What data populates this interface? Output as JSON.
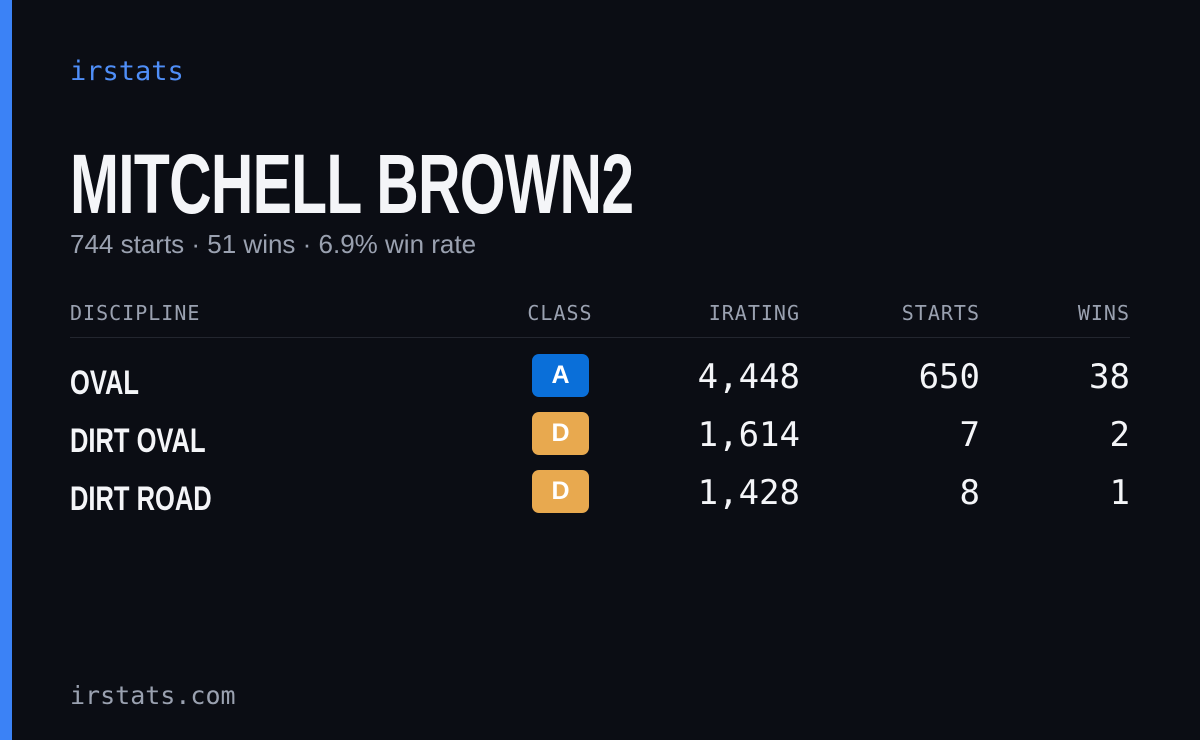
{
  "brand": "irstats",
  "driver": {
    "name": "MITCHELL BROWN2",
    "summary": "744 starts · 51 wins · 6.9% win rate"
  },
  "table": {
    "headers": [
      "DISCIPLINE",
      "CLASS",
      "IRATING",
      "STARTS",
      "WINS"
    ],
    "rows": [
      [
        "OVAL",
        "A",
        "4,448",
        "650",
        "38"
      ],
      [
        "DIRT OVAL",
        "D",
        "1,614",
        "7",
        "2"
      ],
      [
        "DIRT ROAD",
        "D",
        "1,428",
        "8",
        "1"
      ]
    ]
  },
  "footer": "irstats.com"
}
